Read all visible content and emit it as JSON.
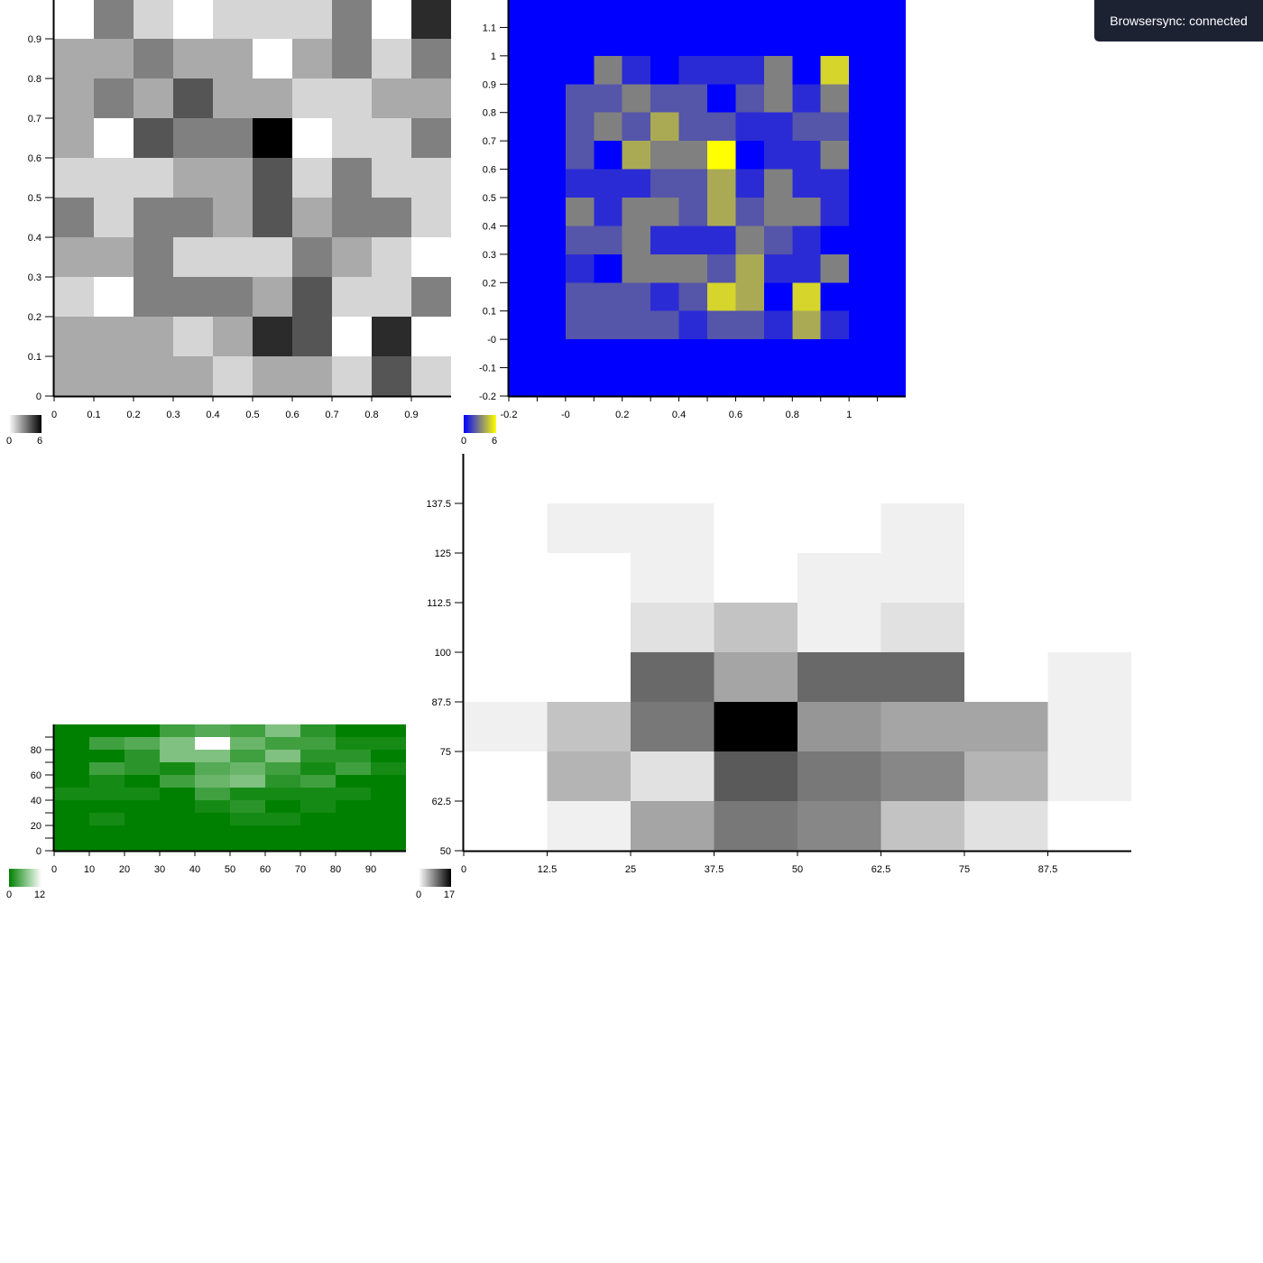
{
  "notification": {
    "text": "Browsersync: connected"
  },
  "chart_data": [
    {
      "type": "heatmap",
      "colors": [
        "#ffffff",
        "#000000"
      ],
      "scale": {
        "min_label": "0",
        "max_label": "6",
        "min": 0,
        "max": 6
      },
      "xlim": [
        0,
        1
      ],
      "ylim": [
        0,
        1
      ],
      "x_ticks": [
        "0",
        "0.1",
        "0.2",
        "0.3",
        "0.4",
        "0.5",
        "0.6",
        "0.7",
        "0.8",
        "0.9"
      ],
      "y_ticks": [
        "0",
        "0.1",
        "0.2",
        "0.3",
        "0.4",
        "0.5",
        "0.6",
        "0.7",
        "0.8",
        "0.9"
      ],
      "cell_size": 0.1,
      "grid": [
        [
          0,
          3,
          1,
          0,
          1,
          1,
          1,
          3,
          0,
          5
        ],
        [
          2,
          2,
          3,
          2,
          2,
          0,
          2,
          3,
          1,
          3
        ],
        [
          2,
          3,
          2,
          4,
          2,
          2,
          1,
          1,
          2,
          2
        ],
        [
          2,
          0,
          4,
          3,
          3,
          6,
          0,
          1,
          1,
          3
        ],
        [
          1,
          1,
          1,
          2,
          2,
          4,
          1,
          3,
          1,
          1
        ],
        [
          3,
          1,
          3,
          3,
          2,
          4,
          2,
          3,
          3,
          1
        ],
        [
          2,
          2,
          3,
          1,
          1,
          1,
          3,
          2,
          1,
          0
        ],
        [
          1,
          0,
          3,
          3,
          3,
          2,
          4,
          1,
          1,
          3
        ],
        [
          2,
          2,
          2,
          1,
          2,
          5,
          4,
          0,
          5,
          0
        ],
        [
          2,
          2,
          2,
          2,
          1,
          2,
          2,
          1,
          4,
          1
        ]
      ]
    },
    {
      "type": "heatmap",
      "colors": [
        "#0000ff",
        "#ffff00"
      ],
      "background": "#0000ff",
      "scale": {
        "min_label": "0",
        "max_label": "6",
        "min": 0,
        "max": 6
      },
      "xlim": [
        -0.2,
        1.2
      ],
      "ylim": [
        -0.2,
        1.2
      ],
      "x_tick_values": [
        -0.2,
        -0.1,
        0,
        0.1,
        0.2,
        0.3,
        0.4,
        0.5,
        0.6,
        0.7,
        0.8,
        0.9,
        1,
        1.1
      ],
      "x_ticks": [
        "-0.2",
        "",
        "-0",
        "",
        "0.2",
        "",
        "0.4",
        "",
        "0.6",
        "",
        "0.8",
        "",
        "1",
        ""
      ],
      "y_tick_values": [
        -0.2,
        -0.1,
        0,
        0.1,
        0.2,
        0.3,
        0.4,
        0.5,
        0.6,
        0.7,
        0.8,
        0.9,
        1,
        1.1
      ],
      "y_ticks": [
        "-0.2",
        "-0.1",
        "-0",
        "0.1",
        "0.2",
        "0.3",
        "0.4",
        "0.5",
        "0.6",
        "0.7",
        "0.8",
        "0.9",
        "1",
        "1.1"
      ],
      "cell_size": 0.1,
      "grid": [
        [
          0,
          3,
          1,
          0,
          1,
          1,
          1,
          3,
          0,
          5
        ],
        [
          2,
          2,
          3,
          2,
          2,
          0,
          2,
          3,
          1,
          3
        ],
        [
          2,
          3,
          2,
          4,
          2,
          2,
          1,
          1,
          2,
          2
        ],
        [
          2,
          0,
          4,
          3,
          3,
          6,
          0,
          1,
          1,
          3
        ],
        [
          1,
          1,
          1,
          2,
          2,
          4,
          1,
          3,
          1,
          1
        ],
        [
          3,
          1,
          3,
          3,
          2,
          4,
          2,
          3,
          3,
          1
        ],
        [
          2,
          2,
          3,
          1,
          1,
          1,
          3,
          2,
          1,
          0
        ],
        [
          1,
          0,
          3,
          3,
          3,
          2,
          4,
          1,
          1,
          3
        ],
        [
          2,
          2,
          2,
          1,
          2,
          5,
          4,
          0,
          5,
          0
        ],
        [
          2,
          2,
          2,
          2,
          1,
          2,
          2,
          1,
          4,
          1
        ]
      ]
    },
    {
      "type": "heatmap",
      "colors": [
        "#008000",
        "#ffffff"
      ],
      "scale": {
        "min_label": "0",
        "max_label": "12",
        "min": 0,
        "max": 12
      },
      "xlim": [
        0,
        100
      ],
      "ylim": [
        0,
        100
      ],
      "x_tick_values": [
        0,
        10,
        20,
        30,
        40,
        50,
        60,
        70,
        80,
        90
      ],
      "x_ticks": [
        "0",
        "10",
        "20",
        "30",
        "40",
        "50",
        "60",
        "70",
        "80",
        "90"
      ],
      "y_tick_values": [
        0,
        10,
        20,
        30,
        40,
        50,
        60,
        70,
        80,
        90
      ],
      "y_ticks": [
        "0",
        "",
        "20",
        "",
        "40",
        "",
        "60",
        "",
        "80",
        ""
      ],
      "cell_size": 10,
      "grid": [
        [
          0,
          0,
          0,
          3,
          4,
          3,
          6,
          2,
          0,
          0
        ],
        [
          0,
          3,
          4,
          6,
          12,
          5,
          3,
          3,
          1,
          1
        ],
        [
          0,
          0,
          2,
          6,
          6,
          3,
          6,
          2,
          2,
          0
        ],
        [
          0,
          3,
          2,
          1,
          4,
          5,
          3,
          1,
          3,
          1
        ],
        [
          0,
          1,
          0,
          3,
          5,
          6,
          2,
          3,
          0,
          0
        ],
        [
          1,
          1,
          1,
          0,
          3,
          1,
          1,
          1,
          1,
          0
        ],
        [
          0,
          0,
          0,
          0,
          1,
          2,
          0,
          1,
          0,
          0
        ],
        [
          0,
          1,
          0,
          0,
          0,
          1,
          1,
          0,
          0,
          0
        ],
        [
          0,
          0,
          0,
          0,
          0,
          0,
          0,
          0,
          0,
          0
        ],
        [
          0,
          0,
          0,
          0,
          0,
          0,
          0,
          0,
          0,
          0
        ]
      ]
    },
    {
      "type": "heatmap",
      "colors": [
        "#ffffff",
        "#000000"
      ],
      "scale": {
        "min_label": "0",
        "max_label": "17",
        "min": 0,
        "max": 17
      },
      "xlim": [
        0,
        100
      ],
      "ylim": [
        50,
        150
      ],
      "x_tick_values": [
        0,
        12.5,
        25,
        37.5,
        50,
        62.5,
        75,
        87.5
      ],
      "x_ticks": [
        "0",
        "12.5",
        "25",
        "37.5",
        "50",
        "62.5",
        "75",
        "87.5"
      ],
      "y_tick_values": [
        50,
        62.5,
        75,
        87.5,
        100,
        112.5,
        125,
        137.5
      ],
      "y_ticks": [
        "50",
        "62.5",
        "75",
        "87.5",
        "100",
        "112.5",
        "125",
        "137.5"
      ],
      "x_edges": [
        0,
        12.5,
        25,
        37.5,
        50,
        62.5,
        75,
        87.5,
        100
      ],
      "y_edges": [
        137.5,
        125,
        112.5,
        100,
        87.5,
        75,
        62.5,
        50
      ],
      "grid": [
        [
          0,
          1,
          1,
          0,
          0,
          1,
          0,
          0
        ],
        [
          0,
          0,
          1,
          0,
          1,
          1,
          0,
          0
        ],
        [
          0,
          0,
          2,
          4,
          1,
          2,
          0,
          0
        ],
        [
          0,
          0,
          10,
          6,
          10,
          10,
          0,
          1
        ],
        [
          1,
          4,
          9,
          17,
          7,
          6,
          6,
          1
        ],
        [
          0,
          5,
          2,
          11,
          9,
          8,
          5,
          1
        ],
        [
          0,
          1,
          6,
          9,
          8,
          4,
          2,
          0
        ]
      ]
    }
  ]
}
